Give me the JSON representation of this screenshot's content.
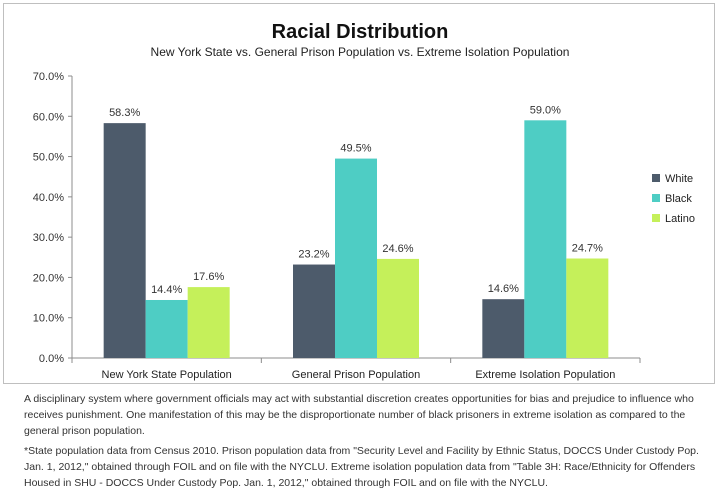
{
  "chart_data": {
    "type": "bar",
    "title": "Racial Distribution",
    "subtitle": "New York State vs. General Prison Population vs. Extreme Isolation Population",
    "categories": [
      "New York State Population",
      "General Prison Population",
      "Extreme Isolation Population"
    ],
    "series": [
      {
        "name": "White",
        "values": [
          58.3,
          23.2,
          14.6
        ],
        "color": "#4d5b6b"
      },
      {
        "name": "Black",
        "values": [
          14.4,
          49.5,
          59.0
        ],
        "color": "#4ecdc4"
      },
      {
        "name": "Latino",
        "values": [
          17.6,
          24.6,
          24.7
        ],
        "color": "#c5f05a"
      }
    ],
    "value_labels": [
      [
        "58.3%",
        "23.2%",
        "14.6%"
      ],
      [
        "14.4%",
        "49.5%",
        "59.0%"
      ],
      [
        "17.6%",
        "24.6%",
        "24.7%"
      ]
    ],
    "y_ticks": [
      "0.0%",
      "10.0%",
      "20.0%",
      "30.0%",
      "40.0%",
      "50.0%",
      "60.0%",
      "70.0%"
    ],
    "ylim": [
      0,
      70
    ],
    "xlabel": "",
    "ylabel": "",
    "grid": false,
    "legend_position": "right"
  },
  "caption": "A disciplinary system where government officials may act with substantial discretion creates opportunities for bias and prejudice to influence who receives punishment.  One manifestation of this may be the disproportionate number of black prisoners in extreme isolation as compared to the general prison population.",
  "footnote": "*State population data from Census 2010.  Prison population data from \"Security Level and Facility by Ethnic Status, DOCCS Under Custody Pop. Jan. 1, 2012,\" obtained through FOIL and on file with the NYCLU.  Extreme isolation population data from \"Table 3H: Race/Ethnicity for Offenders Housed in SHU - DOCCS Under Custody Pop. Jan. 1, 2012,\" obtained through FOIL and on file with the NYCLU."
}
